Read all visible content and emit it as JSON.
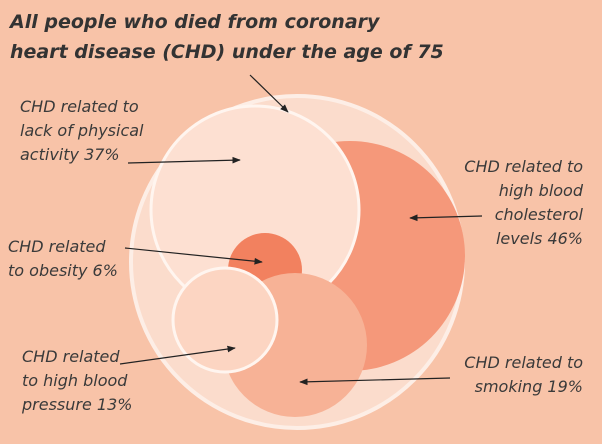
{
  "header": {
    "title_lines": [
      "All people who died from coronary",
      "heart disease (CHD) under the age of 75"
    ]
  },
  "nodes": [
    {
      "label_lines": [
        "CHD related to",
        "lack of physical",
        "activity 37%"
      ]
    },
    {
      "label_lines": [
        "CHD related to",
        "high blood",
        "cholesterol",
        "levels 46%"
      ]
    },
    {
      "label_lines": [
        "CHD related",
        "to obesity 6%"
      ]
    },
    {
      "label_lines": [
        "CHD related",
        "to high blood",
        "pressure 13%"
      ]
    },
    {
      "label_lines": [
        "CHD related to",
        "smoking 19%"
      ]
    }
  ]
}
